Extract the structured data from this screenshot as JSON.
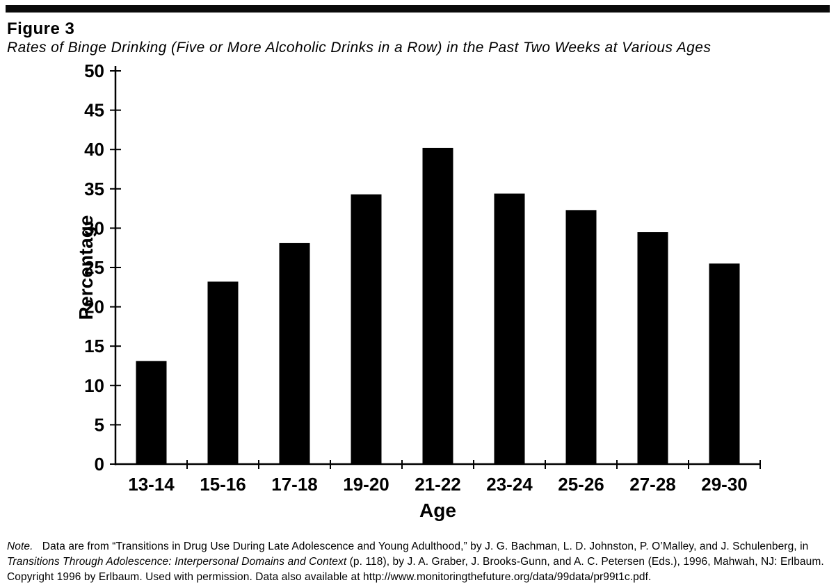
{
  "figure": {
    "label": "Figure 3",
    "caption": "Rates of Binge Drinking (Five or More Alcoholic Drinks in a Row) in the Past Two Weeks at Various Ages"
  },
  "chart_data": {
    "type": "bar",
    "categories": [
      "13-14",
      "15-16",
      "17-18",
      "19-20",
      "21-22",
      "23-24",
      "25-26",
      "27-28",
      "29-30"
    ],
    "values": [
      13.1,
      23.2,
      28.1,
      34.3,
      40.2,
      34.4,
      32.3,
      29.5,
      25.5
    ],
    "title": "Rates of Binge Drinking (Five or More Alcoholic Drinks in a Row) in the Past Two Weeks at Various Ages",
    "xlabel": "Age",
    "ylabel": "Percentage",
    "ylim": [
      0,
      50
    ],
    "yticks": [
      0,
      5,
      10,
      15,
      20,
      25,
      30,
      35,
      40,
      45,
      50
    ],
    "grid": false,
    "legend": null,
    "bar_color": "#000000",
    "axis_color": "#000000"
  },
  "note": {
    "segments": [
      {
        "text": "Note.",
        "italic": true
      },
      {
        "text": "   Data are from “Transitions in Drug Use During Late Adolescence and Young Adulthood,” by J. G. Bachman, L. D. Johnston, P. O’Malley, and J. Schulenberg, in ",
        "italic": false
      },
      {
        "text": "Transitions Through Adolescence: Interpersonal Domains and Context",
        "italic": true
      },
      {
        "text": " (p. 118), by J. A. Graber, J. Brooks-Gunn, and A. C. Petersen (Eds.), 1996, Mahwah, NJ: Erlbaum. Copyright 1996 by Erlbaum. Used with permission. Data also available at http://www.monitoringthefuture.org/data/99data/pr99t1c.pdf.",
        "italic": false
      }
    ]
  }
}
